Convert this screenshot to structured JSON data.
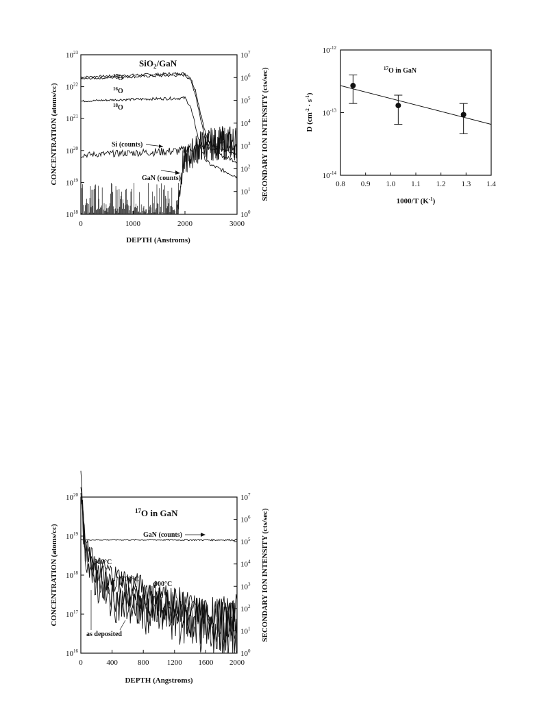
{
  "chart_data": [
    {
      "id": "sio2-gan",
      "type": "line",
      "title": "SiO2/GaN",
      "xlabel": "DEPTH (Anstroms)",
      "ylabel": "CONCENTRATION (atoms/cc)",
      "y2label": "SECONDARY ION INTENSITY (cts/sec)",
      "xlim": [
        0,
        3000
      ],
      "ylim": [
        1e+18,
        1e+23
      ],
      "y2lim": [
        1,
        10000000.0
      ],
      "yscale": "log",
      "xticks": [
        "0",
        "1000",
        "2000",
        "3000"
      ],
      "xtick_values": [
        0,
        1000,
        2000,
        3000
      ],
      "yticks": [
        {
          "base": "10",
          "exp": "18",
          "value": 18
        },
        {
          "base": "10",
          "exp": "19",
          "value": 19
        },
        {
          "base": "10",
          "exp": "20",
          "value": 20
        },
        {
          "base": "10",
          "exp": "21",
          "value": 21
        },
        {
          "base": "10",
          "exp": "22",
          "value": 22
        },
        {
          "base": "10",
          "exp": "23",
          "value": 23
        }
      ],
      "y2ticks": [
        {
          "base": "10",
          "exp": "0",
          "value": 0
        },
        {
          "base": "10",
          "exp": "1",
          "value": 1
        },
        {
          "base": "10",
          "exp": "2",
          "value": 2
        },
        {
          "base": "10",
          "exp": "3",
          "value": 3
        },
        {
          "base": "10",
          "exp": "4",
          "value": 4
        },
        {
          "base": "10",
          "exp": "5",
          "value": 5
        },
        {
          "base": "10",
          "exp": "6",
          "value": 6
        },
        {
          "base": "10",
          "exp": "7",
          "value": 7
        }
      ],
      "series": [
        {
          "name": "17O",
          "x": [
            0,
            500,
            1000,
            1500,
            2000,
            2100,
            2200,
            2300,
            2400,
            2500,
            2700,
            3000
          ],
          "y": [
            2e+22,
            2.15e+22,
            2.3e+22,
            2.45e+22,
            2.6e+22,
            2e+22,
            8e+21,
            1.5e+21,
            3e+20,
            1.6e+20,
            1.1e+20,
            7e+19
          ]
        },
        {
          "name": "16O",
          "x": [
            0,
            500,
            1000,
            1500,
            2000,
            2100,
            2200,
            2300,
            2400,
            2500,
            2700,
            3000
          ],
          "y": [
            1.75e+22,
            1.9e+22,
            2.05e+22,
            2.2e+22,
            2.35e+22,
            1.7e+22,
            6e+21,
            1e+21,
            2e+20,
            1.1e+20,
            7e+19,
            4.5e+19
          ]
        },
        {
          "name": "18O",
          "x": [
            0,
            500,
            1000,
            1500,
            2000,
            2100,
            2200,
            2300,
            2400,
            2500,
            2700,
            3000
          ],
          "y": [
            3.5e+21,
            3.8e+21,
            4e+21,
            4.2e+21,
            4.4e+21,
            2.5e+21,
            6e+20,
            1.2e+20,
            5e+19,
            3.5e+19,
            2.5e+19,
            1.5e+19
          ]
        },
        {
          "name": "Si (counts)",
          "axis": "right",
          "x": [
            0,
            500,
            1000,
            1500,
            1900,
            2100,
            2300,
            2500,
            3000
          ],
          "y": [
            400,
            450,
            500,
            550,
            600,
            750,
            1000,
            1000,
            1000
          ]
        },
        {
          "name": "GaN (counts)",
          "axis": "right",
          "x": [
            1850,
            1950,
            2100,
            2300,
            2500,
            2700,
            3000
          ],
          "y": [
            1,
            150,
            400,
            1000,
            1200,
            1300,
            1400
          ]
        }
      ],
      "labels": {
        "o17": "17O",
        "o16": "16O",
        "o18": "18O",
        "si": "Si (counts)",
        "gan": "GaN (counts)"
      }
    },
    {
      "id": "diffusivity",
      "type": "scatter",
      "title": "17O in GaN",
      "xlabel": "1000/T (K-1)",
      "ylabel": "D (cm-2 · s-1)",
      "xlim": [
        0.8,
        1.4
      ],
      "ylim": [
        1e-14,
        1e-12
      ],
      "yscale": "log",
      "xticks": [
        "0.8",
        "0.9",
        "1.0",
        "1.1",
        "1.2",
        "1.3",
        "1.4"
      ],
      "xtick_values": [
        0.8,
        0.9,
        1.0,
        1.1,
        1.2,
        1.3,
        1.4
      ],
      "yticks": [
        {
          "base": "10",
          "exp": "-14",
          "value": -14
        },
        {
          "base": "10",
          "exp": "-13",
          "value": -13
        },
        {
          "base": "10",
          "exp": "-12",
          "value": -12
        }
      ],
      "points": [
        {
          "x": 0.85,
          "y": 2.7e-13,
          "ylow": 1.4e-13,
          "yhigh": 4e-13
        },
        {
          "x": 1.03,
          "y": 1.3e-13,
          "ylow": 6.5e-14,
          "yhigh": 1.9e-13
        },
        {
          "x": 1.29,
          "y": 9.3e-14,
          "ylow": 4.6e-14,
          "yhigh": 1.4e-13
        }
      ],
      "fit": {
        "x": [
          0.8,
          1.4
        ],
        "y": [
          2.7e-13,
          6.5e-14
        ]
      }
    },
    {
      "id": "o17-in-gan",
      "type": "line",
      "title": "17O in GaN",
      "xlabel": "DEPTH (Angstroms)",
      "ylabel": "CONCENTRATION (atoms/cc)",
      "y2label": "SECONDARY ION INTENSITY (cts/sec)",
      "xlim": [
        0,
        2000
      ],
      "ylim": [
        1e+16,
        1e+20
      ],
      "y2lim": [
        1,
        10000000.0
      ],
      "yscale": "log",
      "xticks": [
        "0",
        "400",
        "800",
        "1200",
        "1600",
        "2000"
      ],
      "xtick_values": [
        0,
        400,
        800,
        1200,
        1600,
        2000
      ],
      "yticks": [
        {
          "base": "10",
          "exp": "16",
          "value": 16
        },
        {
          "base": "10",
          "exp": "17",
          "value": 17
        },
        {
          "base": "10",
          "exp": "18",
          "value": 18
        },
        {
          "base": "10",
          "exp": "19",
          "value": 19
        },
        {
          "base": "10",
          "exp": "20",
          "value": 20
        }
      ],
      "y2ticks": [
        {
          "base": "10",
          "exp": "0",
          "value": 0
        },
        {
          "base": "10",
          "exp": "1",
          "value": 1
        },
        {
          "base": "10",
          "exp": "2",
          "value": 2
        },
        {
          "base": "10",
          "exp": "3",
          "value": 3
        },
        {
          "base": "10",
          "exp": "4",
          "value": 4
        },
        {
          "base": "10",
          "exp": "5",
          "value": 5
        },
        {
          "base": "10",
          "exp": "6",
          "value": 6
        },
        {
          "base": "10",
          "exp": "7",
          "value": 7
        }
      ],
      "series": [
        {
          "name": "GaN (counts)",
          "axis": "right",
          "x": [
            0,
            2000
          ],
          "y": [
            120000.0,
            120000.0
          ]
        },
        {
          "name": "900°C",
          "x": [
            0,
            50,
            100,
            200,
            300,
            500,
            800,
            1200,
            1600,
            2000
          ],
          "y": [
            2e+20,
            1e+19,
            4e+18,
            2e+18,
            1.5e+18,
            9e+17,
            5e+17,
            2.5e+17,
            1e+17,
            1.2e+17
          ]
        },
        {
          "name": "700°C",
          "x": [
            0,
            50,
            100,
            200,
            300,
            500,
            800,
            1200,
            1600,
            2000
          ],
          "y": [
            2e+20,
            8e+18,
            3e+18,
            1.5e+18,
            9e+17,
            4.5e+17,
            2.5e+17,
            1.5e+17,
            8e+16,
            6e+16
          ]
        },
        {
          "name": "500°C",
          "x": [
            0,
            50,
            100,
            200,
            300,
            500,
            800,
            1200,
            1600,
            2000
          ],
          "y": [
            2e+20,
            6e+18,
            2e+18,
            9e+17,
            5e+17,
            2.5e+17,
            1.5e+17,
            1e+17,
            6e+16,
            4e+16
          ]
        },
        {
          "name": "as deposited",
          "x": [
            0,
            50,
            100,
            200,
            300,
            500,
            800,
            1200,
            1600,
            2000
          ],
          "y": [
            2e+20,
            5e+18,
            1.5e+18,
            6e+17,
            3.5e+17,
            1.8e+17,
            1.3e+17,
            9e+16,
            5e+16,
            3e+16
          ]
        }
      ],
      "labels": {
        "gan": "GaN (counts)",
        "t500": "500°C",
        "t700": "700°C",
        "t900": "900°C",
        "asdep": "as deposited"
      }
    }
  ]
}
